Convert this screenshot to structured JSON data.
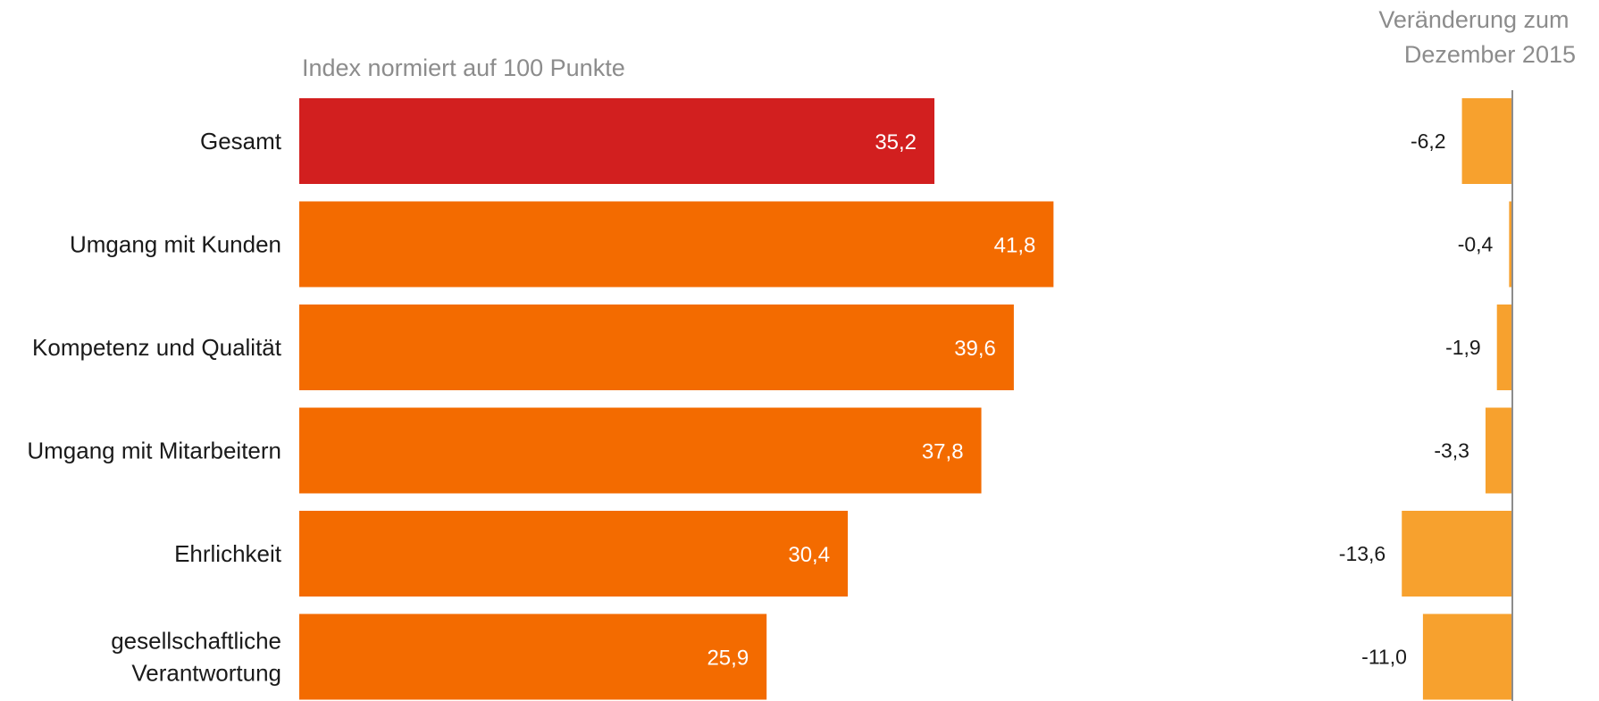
{
  "chart_data": {
    "type": "bar",
    "orientation": "horizontal",
    "title": "",
    "subtitle": "Index normiert auf 100 Punkte",
    "change_title": [
      "Veränderung zum",
      "Dezember 2015"
    ],
    "categories": [
      [
        "Gesamt"
      ],
      [
        "Umgang mit Kunden"
      ],
      [
        "Kompetenz und Qualität"
      ],
      [
        "Umgang mit Mitarbeitern"
      ],
      [
        "Ehrlichkeit"
      ],
      [
        "gesellschaftliche",
        "Verantwortung"
      ]
    ],
    "values": [
      35.2,
      41.8,
      39.6,
      37.8,
      30.4,
      25.9
    ],
    "value_labels": [
      "35,2",
      "41,8",
      "39,6",
      "37,8",
      "30,4",
      "25,9"
    ],
    "changes": [
      -6.2,
      -0.4,
      -1.9,
      -3.3,
      -13.6,
      -11.0
    ],
    "change_labels": [
      "-6,2",
      "-0,4",
      "-1,9",
      "-3,3",
      "-13,6",
      "-11,0"
    ],
    "colors": {
      "highlight": "#d21f1f",
      "bar": "#f36b00",
      "change": "#f7a12e",
      "axis": "#8c8c8c"
    }
  }
}
